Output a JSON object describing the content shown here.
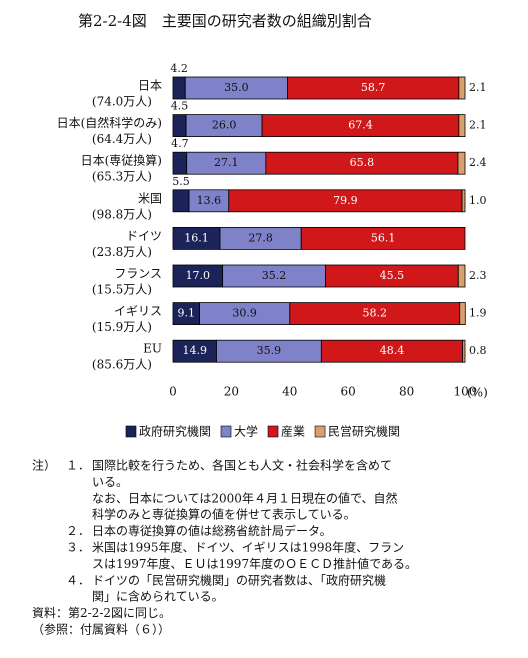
{
  "chart_data": {
    "type": "stacked-bar-horizontal",
    "title": "第2-2-4図　主要国の研究者数の組織別割合",
    "categories": [
      "日本",
      "日本(自然科学のみ)",
      "日本(専従換算)",
      "米国",
      "ドイツ",
      "フランス",
      "イギリス",
      "EU"
    ],
    "category_sublabels": [
      "(74.0万人)",
      "(64.4万人)",
      "(65.3万人)",
      "(98.8万人)",
      "(23.8万人)",
      "(15.5万人)",
      "(15.9万人)",
      "(85.6万人)"
    ],
    "series": [
      {
        "name": "政府研究機関",
        "color": "#1b2358",
        "values": [
          4.2,
          4.5,
          4.7,
          5.5,
          16.1,
          17.0,
          9.1,
          14.9
        ],
        "value_labels": [
          "4.2",
          "4.5",
          "4.7",
          "5.5",
          "16.1",
          "17.0",
          "9.1",
          "14.9"
        ]
      },
      {
        "name": "大学",
        "color": "#7f82c8",
        "values": [
          35.0,
          26.0,
          27.1,
          13.6,
          27.8,
          35.2,
          30.9,
          35.9
        ],
        "value_labels": [
          "35.0",
          "26.0",
          "27.1",
          "13.6",
          "27.8",
          "35.2",
          "30.9",
          "35.9"
        ]
      },
      {
        "name": "産業",
        "color": "#d0181a",
        "values": [
          58.7,
          67.4,
          65.8,
          79.9,
          56.1,
          45.5,
          58.2,
          48.4
        ],
        "value_labels": [
          "58.7",
          "67.4",
          "65.8",
          "79.9",
          "56.1",
          "45.5",
          "58.2",
          "48.4"
        ]
      },
      {
        "name": "民営研究機関",
        "color": "#d9a06e",
        "values": [
          2.1,
          2.1,
          2.4,
          1.0,
          null,
          2.3,
          1.9,
          0.8
        ],
        "value_labels": [
          "2.1",
          "2.1",
          "2.4",
          "1.0",
          null,
          "2.3",
          "1.9",
          "0.8"
        ]
      }
    ],
    "xlim": [
      0,
      100
    ],
    "xticks": [
      0,
      20,
      40,
      60,
      80,
      100
    ],
    "x_unit": "(%)"
  },
  "notes": {
    "marker": "注）",
    "items": [
      {
        "label": "１．",
        "lines": [
          "国際比較を行うため、各国とも人文・社会科学を含めて",
          "いる。",
          "なお、日本については2000年４月１日現在の値で、自然",
          "科学のみと専従換算の値を併せて表示している。"
        ]
      },
      {
        "label": "２．",
        "lines": [
          "日本の専従換算の値は総務省統計局データ。"
        ]
      },
      {
        "label": "３．",
        "lines": [
          "米国は1995年度、ドイツ、イギリスは1998年度、フラン",
          "スは1997年度、ＥＵは1997年度のＯＥＣＤ推計値である。"
        ]
      },
      {
        "label": "４．",
        "lines": [
          "ドイツの「民営研究機関」の研究者数は、「政府研究機",
          "関」に含められている。"
        ]
      }
    ],
    "source": "資料：第2-2-2図に同じ。",
    "reference": "（参照：付属資料（６））"
  }
}
